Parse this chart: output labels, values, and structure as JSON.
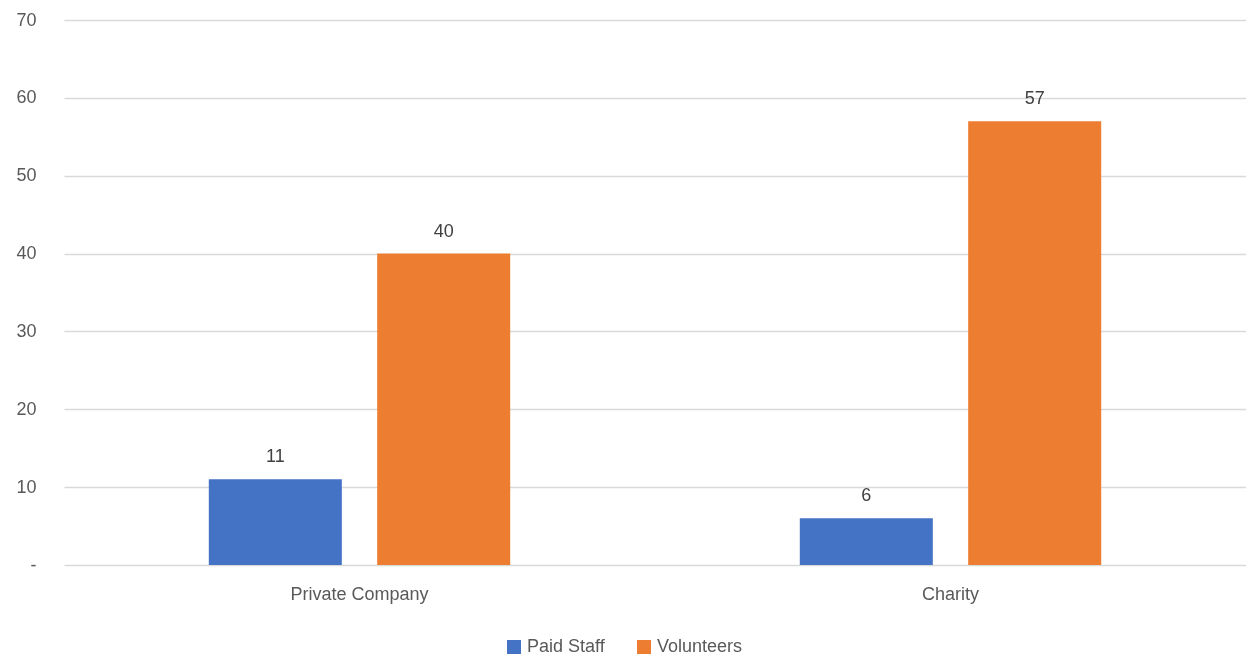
{
  "chart_data": {
    "type": "bar",
    "categories": [
      "Private Company",
      "Charity"
    ],
    "series": [
      {
        "name": "Paid Staff",
        "color": "#4472c4",
        "values": [
          11,
          6
        ]
      },
      {
        "name": "Volunteers",
        "color": "#ed7d31",
        "values": [
          40,
          57
        ]
      }
    ],
    "ylim": [
      0,
      70
    ],
    "yticks": [
      {
        "value": 0,
        "label": "-"
      },
      10,
      20,
      30,
      40,
      50,
      60,
      70
    ],
    "grid": "y",
    "legend": "bottom",
    "data_labels": true
  }
}
